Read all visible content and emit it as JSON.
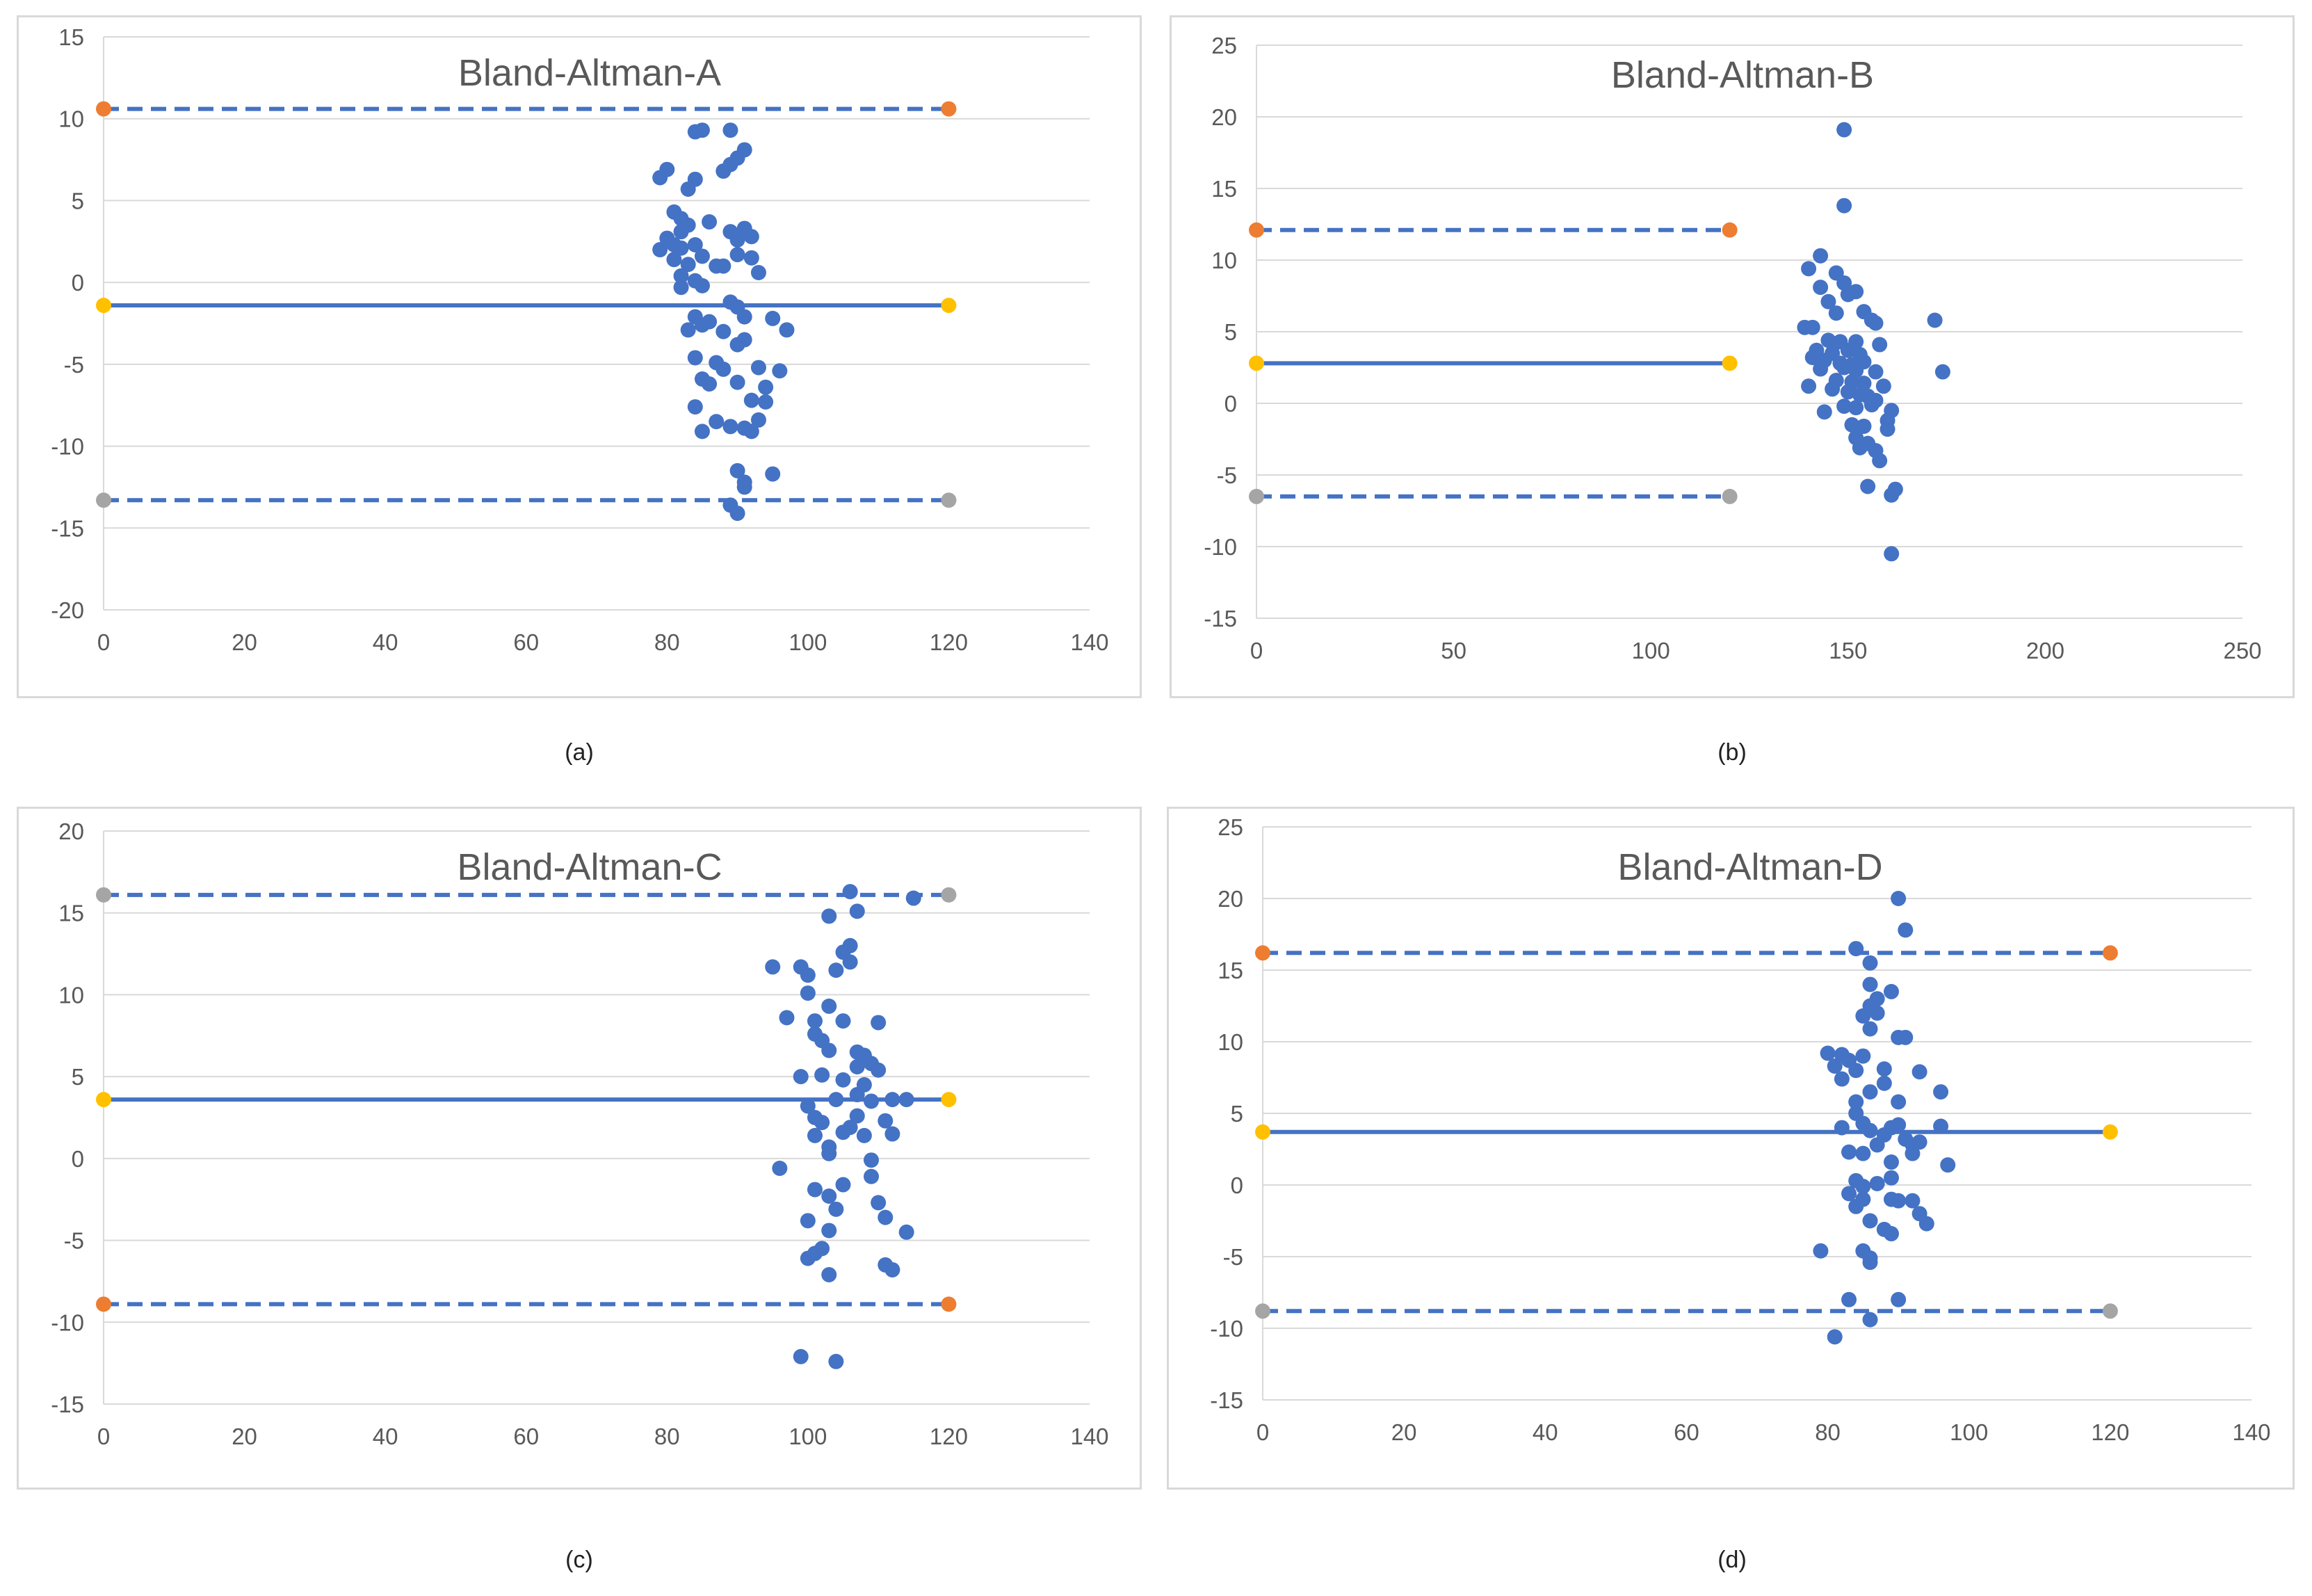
{
  "chart_data": [
    {
      "type": "scatter",
      "title": "Bland-Altman-A",
      "caption": "(a)",
      "xlim": [
        0,
        140
      ],
      "ylim": [
        -20,
        15
      ],
      "xticks": [
        0,
        20,
        40,
        60,
        80,
        100,
        120,
        140
      ],
      "yticks": [
        -20,
        -15,
        -10,
        -5,
        0,
        5,
        10,
        15
      ],
      "grid": "horizontal",
      "lines": [
        {
          "role": "upper-limit",
          "y": 10.6,
          "style": "dashed",
          "start_color": "#ed7d31",
          "end_color": "#ed7d31"
        },
        {
          "role": "mean",
          "y": -1.4,
          "style": "solid",
          "start_color": "#ffc000",
          "end_color": "#ffc000"
        },
        {
          "role": "lower-limit",
          "y": -13.3,
          "style": "dashed",
          "start_color": "#a5a5a5",
          "end_color": "#a5a5a5"
        }
      ],
      "points": [
        [
          84,
          9.2
        ],
        [
          85,
          9.3
        ],
        [
          89,
          9.3
        ],
        [
          91,
          8.1
        ],
        [
          90,
          7.6
        ],
        [
          89,
          7.2
        ],
        [
          88,
          6.8
        ],
        [
          79,
          6.4
        ],
        [
          80,
          6.9
        ],
        [
          84,
          6.3
        ],
        [
          83,
          5.7
        ],
        [
          81,
          4.3
        ],
        [
          82,
          3.9
        ],
        [
          83,
          3.5
        ],
        [
          82,
          3.1
        ],
        [
          86,
          3.7
        ],
        [
          89,
          3.1
        ],
        [
          91,
          3.3
        ],
        [
          92,
          2.8
        ],
        [
          90,
          2.6
        ],
        [
          80,
          2.7
        ],
        [
          81,
          2.3
        ],
        [
          79,
          2.0
        ],
        [
          82,
          2.1
        ],
        [
          84,
          2.3
        ],
        [
          85,
          1.6
        ],
        [
          81,
          1.4
        ],
        [
          83,
          1.1
        ],
        [
          87,
          1.0
        ],
        [
          88,
          1.0
        ],
        [
          90,
          1.7
        ],
        [
          92,
          1.5
        ],
        [
          93,
          0.6
        ],
        [
          82,
          0.4
        ],
        [
          84,
          0.1
        ],
        [
          85,
          -0.2
        ],
        [
          82,
          -0.3
        ],
        [
          89,
          -1.2
        ],
        [
          90,
          -1.5
        ],
        [
          84,
          -2.1
        ],
        [
          86,
          -2.4
        ],
        [
          91,
          -2.1
        ],
        [
          95,
          -2.2
        ],
        [
          97,
          -2.9
        ],
        [
          83,
          -2.9
        ],
        [
          85,
          -2.6
        ],
        [
          88,
          -3.0
        ],
        [
          90,
          -3.8
        ],
        [
          91,
          -3.5
        ],
        [
          84,
          -4.6
        ],
        [
          87,
          -4.9
        ],
        [
          88,
          -5.3
        ],
        [
          93,
          -5.2
        ],
        [
          96,
          -5.4
        ],
        [
          85,
          -5.9
        ],
        [
          86,
          -6.2
        ],
        [
          90,
          -6.1
        ],
        [
          94,
          -6.4
        ],
        [
          84,
          -7.6
        ],
        [
          92,
          -7.2
        ],
        [
          94,
          -7.3
        ],
        [
          87,
          -8.5
        ],
        [
          89,
          -8.8
        ],
        [
          91,
          -8.9
        ],
        [
          93,
          -8.4
        ],
        [
          92,
          -9.1
        ],
        [
          85,
          -9.1
        ],
        [
          90,
          -11.5
        ],
        [
          91,
          -12.2
        ],
        [
          95,
          -11.7
        ],
        [
          91,
          -12.5
        ],
        [
          89,
          -13.6
        ],
        [
          90,
          -14.1
        ]
      ]
    },
    {
      "type": "scatter",
      "title": "Bland-Altman-B",
      "caption": "(b)",
      "xlim": [
        0,
        250
      ],
      "ylim": [
        -15,
        25
      ],
      "xticks": [
        0,
        50,
        100,
        150,
        200,
        250
      ],
      "yticks": [
        -15,
        -10,
        -5,
        0,
        5,
        10,
        15,
        20,
        25
      ],
      "grid": "horizontal",
      "lines": [
        {
          "role": "upper-limit",
          "y": 12.1,
          "style": "dashed",
          "start_color": "#ed7d31",
          "end_color": "#ed7d31"
        },
        {
          "role": "mean",
          "y": 2.8,
          "style": "solid",
          "start_color": "#ffc000",
          "end_color": "#ffc000"
        },
        {
          "role": "lower-limit",
          "y": -6.5,
          "style": "dashed",
          "start_color": "#a5a5a5",
          "end_color": "#a5a5a5"
        }
      ],
      "points": [
        [
          149,
          19.1
        ],
        [
          149,
          13.8
        ],
        [
          143,
          10.3
        ],
        [
          140,
          9.4
        ],
        [
          147,
          9.1
        ],
        [
          149,
          8.4
        ],
        [
          143,
          8.1
        ],
        [
          152,
          7.8
        ],
        [
          145,
          7.1
        ],
        [
          150,
          7.6
        ],
        [
          147,
          6.3
        ],
        [
          154,
          6.4
        ],
        [
          156,
          5.8
        ],
        [
          157,
          5.6
        ],
        [
          172,
          5.8
        ],
        [
          139,
          5.3
        ],
        [
          141,
          5.3
        ],
        [
          145,
          4.4
        ],
        [
          148,
          4.3
        ],
        [
          152,
          4.3
        ],
        [
          158,
          4.1
        ],
        [
          142,
          3.7
        ],
        [
          146,
          3.5
        ],
        [
          150,
          3.7
        ],
        [
          153,
          3.4
        ],
        [
          141,
          3.2
        ],
        [
          144,
          3.0
        ],
        [
          148,
          2.8
        ],
        [
          151,
          2.7
        ],
        [
          154,
          2.9
        ],
        [
          143,
          2.4
        ],
        [
          149,
          2.5
        ],
        [
          152,
          2.3
        ],
        [
          157,
          2.2
        ],
        [
          174,
          2.2
        ],
        [
          147,
          1.6
        ],
        [
          151,
          1.5
        ],
        [
          154,
          1.4
        ],
        [
          159,
          1.2
        ],
        [
          140,
          1.2
        ],
        [
          146,
          1.0
        ],
        [
          150,
          0.8
        ],
        [
          153,
          0.6
        ],
        [
          155,
          0.5
        ],
        [
          157,
          0.2
        ],
        [
          144,
          -0.6
        ],
        [
          149,
          -0.2
        ],
        [
          152,
          -0.3
        ],
        [
          156,
          -0.1
        ],
        [
          161,
          -0.5
        ],
        [
          160,
          -1.2
        ],
        [
          151,
          -1.5
        ],
        [
          154,
          -1.6
        ],
        [
          160,
          -1.8
        ],
        [
          152,
          -2.4
        ],
        [
          155,
          -2.8
        ],
        [
          157,
          -3.3
        ],
        [
          153,
          -3.1
        ],
        [
          158,
          -4.0
        ],
        [
          155,
          -5.8
        ],
        [
          162,
          -6.0
        ],
        [
          161,
          -6.4
        ],
        [
          161,
          -10.5
        ]
      ]
    },
    {
      "type": "scatter",
      "title": "Bland-Altman-C",
      "caption": "(c)",
      "xlim": [
        0,
        140
      ],
      "ylim": [
        -15,
        20
      ],
      "xticks": [
        0,
        20,
        40,
        60,
        80,
        100,
        120,
        140
      ],
      "yticks": [
        -15,
        -10,
        -5,
        0,
        5,
        10,
        15,
        20
      ],
      "grid": "horizontal",
      "lines": [
        {
          "role": "upper-limit",
          "y": 16.1,
          "style": "dashed",
          "start_color": "#a5a5a5",
          "end_color": "#a5a5a5"
        },
        {
          "role": "mean",
          "y": 3.6,
          "style": "solid",
          "start_color": "#ffc000",
          "end_color": "#ffc000"
        },
        {
          "role": "lower-limit",
          "y": -8.9,
          "style": "dashed",
          "start_color": "#ed7d31",
          "end_color": "#ed7d31"
        }
      ],
      "points": [
        [
          106,
          16.3
        ],
        [
          115,
          15.9
        ],
        [
          107,
          15.1
        ],
        [
          103,
          14.8
        ],
        [
          106,
          13.0
        ],
        [
          105,
          12.6
        ],
        [
          106,
          12.0
        ],
        [
          104,
          11.5
        ],
        [
          95,
          11.7
        ],
        [
          99,
          11.7
        ],
        [
          100,
          11.2
        ],
        [
          100,
          10.1
        ],
        [
          103,
          9.3
        ],
        [
          97,
          8.6
        ],
        [
          101,
          8.4
        ],
        [
          105,
          8.4
        ],
        [
          110,
          8.3
        ],
        [
          101,
          7.6
        ],
        [
          102,
          7.2
        ],
        [
          103,
          6.6
        ],
        [
          107,
          6.5
        ],
        [
          108,
          6.3
        ],
        [
          109,
          5.8
        ],
        [
          107,
          5.6
        ],
        [
          110,
          5.4
        ],
        [
          99,
          5.0
        ],
        [
          102,
          5.1
        ],
        [
          105,
          4.8
        ],
        [
          108,
          4.5
        ],
        [
          107,
          3.9
        ],
        [
          104,
          3.6
        ],
        [
          109,
          3.5
        ],
        [
          112,
          3.6
        ],
        [
          114,
          3.6
        ],
        [
          100,
          3.2
        ],
        [
          101,
          2.5
        ],
        [
          107,
          2.6
        ],
        [
          111,
          2.3
        ],
        [
          102,
          2.2
        ],
        [
          106,
          1.9
        ],
        [
          105,
          1.6
        ],
        [
          108,
          1.4
        ],
        [
          101,
          1.4
        ],
        [
          112,
          1.5
        ],
        [
          103,
          0.7
        ],
        [
          103,
          0.3
        ],
        [
          109,
          -0.1
        ],
        [
          96,
          -0.6
        ],
        [
          109,
          -1.1
        ],
        [
          105,
          -1.6
        ],
        [
          101,
          -1.9
        ],
        [
          103,
          -2.3
        ],
        [
          110,
          -2.7
        ],
        [
          104,
          -3.1
        ],
        [
          111,
          -3.6
        ],
        [
          100,
          -3.8
        ],
        [
          103,
          -4.4
        ],
        [
          114,
          -4.5
        ],
        [
          102,
          -5.5
        ],
        [
          101,
          -5.8
        ],
        [
          100,
          -6.1
        ],
        [
          111,
          -6.5
        ],
        [
          112,
          -6.8
        ],
        [
          103,
          -7.1
        ],
        [
          99,
          -12.1
        ],
        [
          104,
          -12.4
        ]
      ]
    },
    {
      "type": "scatter",
      "title": "Bland-Altman-D",
      "caption": "(d)",
      "xlim": [
        0,
        140
      ],
      "ylim": [
        -15,
        25
      ],
      "xticks": [
        0,
        20,
        40,
        60,
        80,
        100,
        120,
        140
      ],
      "yticks": [
        -15,
        -10,
        -5,
        0,
        5,
        10,
        15,
        20,
        25
      ],
      "grid": "horizontal",
      "lines": [
        {
          "role": "upper-limit",
          "y": 16.2,
          "style": "dashed",
          "start_color": "#ed7d31",
          "end_color": "#ed7d31"
        },
        {
          "role": "mean",
          "y": 3.7,
          "style": "solid",
          "start_color": "#ffc000",
          "end_color": "#ffc000"
        },
        {
          "role": "lower-limit",
          "y": -8.8,
          "style": "dashed",
          "start_color": "#a5a5a5",
          "end_color": "#a5a5a5"
        }
      ],
      "points": [
        [
          90,
          20.0
        ],
        [
          91,
          17.8
        ],
        [
          84,
          16.5
        ],
        [
          86,
          15.5
        ],
        [
          89,
          13.5
        ],
        [
          86,
          14.0
        ],
        [
          87,
          13.0
        ],
        [
          86,
          12.5
        ],
        [
          85,
          11.8
        ],
        [
          87,
          12.0
        ],
        [
          86,
          10.9
        ],
        [
          90,
          10.3
        ],
        [
          91,
          10.3
        ],
        [
          80,
          9.2
        ],
        [
          82,
          9.1
        ],
        [
          83,
          8.7
        ],
        [
          85,
          9.0
        ],
        [
          81,
          8.3
        ],
        [
          84,
          8.0
        ],
        [
          88,
          8.1
        ],
        [
          93,
          7.9
        ],
        [
          82,
          7.4
        ],
        [
          88,
          7.1
        ],
        [
          96,
          6.5
        ],
        [
          86,
          6.5
        ],
        [
          84,
          5.8
        ],
        [
          90,
          5.8
        ],
        [
          84,
          5.0
        ],
        [
          85,
          4.3
        ],
        [
          89,
          4.0
        ],
        [
          82,
          4.0
        ],
        [
          86,
          3.8
        ],
        [
          90,
          4.2
        ],
        [
          96,
          4.1
        ],
        [
          88,
          3.5
        ],
        [
          91,
          3.2
        ],
        [
          93,
          3.0
        ],
        [
          87,
          2.8
        ],
        [
          92,
          2.8
        ],
        [
          83,
          2.3
        ],
        [
          85,
          2.2
        ],
        [
          92,
          2.2
        ],
        [
          89,
          1.6
        ],
        [
          97,
          1.4
        ],
        [
          84,
          0.3
        ],
        [
          87,
          0.1
        ],
        [
          89,
          0.5
        ],
        [
          85,
          -0.1
        ],
        [
          83,
          -0.6
        ],
        [
          85,
          -1.0
        ],
        [
          89,
          -1.0
        ],
        [
          90,
          -1.1
        ],
        [
          84,
          -1.5
        ],
        [
          92,
          -1.1
        ],
        [
          86,
          -2.5
        ],
        [
          93,
          -2.0
        ],
        [
          94,
          -2.7
        ],
        [
          88,
          -3.1
        ],
        [
          89,
          -3.4
        ],
        [
          79,
          -4.6
        ],
        [
          85,
          -4.6
        ],
        [
          86,
          -5.1
        ],
        [
          86,
          -5.4
        ],
        [
          83,
          -8.0
        ],
        [
          90,
          -8.0
        ],
        [
          81,
          -10.6
        ],
        [
          86,
          -9.4
        ]
      ]
    }
  ]
}
